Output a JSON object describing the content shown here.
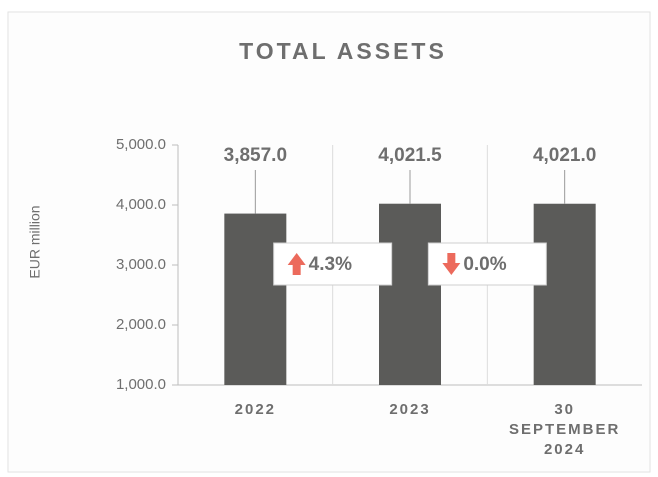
{
  "chart_data": {
    "type": "bar",
    "title": "TOTAL ASSETS",
    "y_label": "EUR million",
    "categories": [
      "2022",
      "2023",
      "30 SEPTEMBER 2024"
    ],
    "values": [
      3857.0,
      4021.5,
      4021.0
    ],
    "value_labels": [
      "3,857.0",
      "4,021.5",
      "4,021.0"
    ],
    "color": "#5b5b59",
    "ylim": [
      1000,
      5000
    ],
    "yticks": [
      {
        "value": 1000,
        "label": "1,000.0"
      },
      {
        "value": 2000,
        "label": "2,000.0"
      },
      {
        "value": 3000,
        "label": "3,000.0"
      },
      {
        "value": 4000,
        "label": "4,000.0"
      },
      {
        "value": 5000,
        "label": "5,000.0"
      }
    ],
    "annotations": [
      {
        "text": "4.3%",
        "direction": "up"
      },
      {
        "text": "0.0%",
        "direction": "down"
      }
    ],
    "arrow_color": "#ec6a5c"
  }
}
